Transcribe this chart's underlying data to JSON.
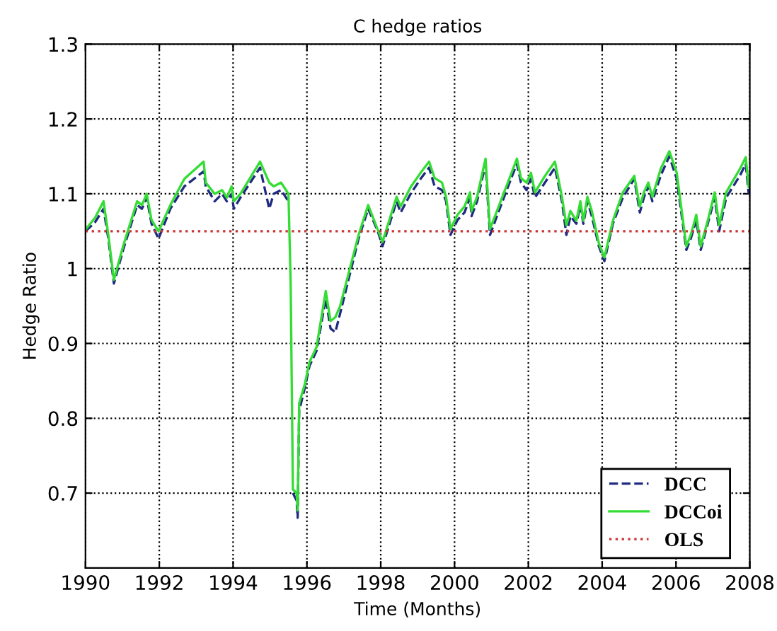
{
  "chart_data": {
    "type": "line",
    "title": "C hedge ratios",
    "xlabel": "Time (Months)",
    "ylabel": "Hedge Ratio",
    "xlim": [
      1990,
      2008
    ],
    "xticks": [
      1990,
      1992,
      1994,
      1996,
      1998,
      2000,
      2002,
      2004,
      2006,
      2008
    ],
    "ylim": [
      0.6,
      1.3
    ],
    "yticks": [
      0.7,
      0.8,
      0.9,
      1,
      1.1,
      1.2,
      1.3
    ],
    "grid": true,
    "legend": "bottom right",
    "marker": "none",
    "series": [
      {
        "name": "DCC",
        "color": "#1f2a80",
        "line_style": "dashed",
        "x": [
          1990.0,
          1990.26,
          1990.49,
          1990.62,
          1990.77,
          1991.02,
          1991.4,
          1991.53,
          1991.66,
          1991.79,
          1991.98,
          1992.3,
          1992.68,
          1993.2,
          1993.26,
          1993.5,
          1993.7,
          1993.83,
          1993.96,
          1994.02,
          1994.2,
          1994.73,
          1994.98,
          1995.1,
          1995.3,
          1995.5,
          1995.56,
          1995.62,
          1995.72,
          1995.75,
          1995.79,
          1995.94,
          1996.07,
          1996.26,
          1996.51,
          1996.64,
          1996.77,
          1996.9,
          1997.4,
          1997.66,
          1997.92,
          1998.05,
          1998.43,
          1998.54,
          1998.81,
          1999.08,
          1999.31,
          1999.46,
          1999.66,
          1999.77,
          1999.89,
          2000.08,
          2000.27,
          2000.42,
          2000.46,
          2000.61,
          2000.84,
          2000.96,
          2001.11,
          2001.49,
          2001.69,
          2001.8,
          2001.95,
          2002.07,
          2002.18,
          2002.45,
          2002.72,
          2002.91,
          2003.03,
          2003.14,
          2003.3,
          2003.41,
          2003.49,
          2003.6,
          2003.72,
          2003.91,
          2004.06,
          2004.29,
          2004.56,
          2004.87,
          2005.02,
          2005.13,
          2005.25,
          2005.36,
          2005.59,
          2005.82,
          2006.02,
          2006.28,
          2006.4,
          2006.55,
          2006.67,
          2006.86,
          2007.05,
          2007.17,
          2007.36,
          2007.74,
          2007.89,
          2007.97
        ],
        "values": [
          1.05,
          1.062,
          1.08,
          1.04,
          0.98,
          1.025,
          1.085,
          1.08,
          1.095,
          1.06,
          1.04,
          1.08,
          1.11,
          1.13,
          1.11,
          1.09,
          1.1,
          1.09,
          1.1,
          1.08,
          1.095,
          1.135,
          1.08,
          1.1,
          1.105,
          1.09,
          null,
          0.7,
          0.69,
          0.667,
          0.81,
          0.84,
          0.87,
          0.89,
          0.96,
          0.92,
          0.915,
          0.94,
          1.04,
          1.08,
          1.05,
          1.03,
          1.09,
          1.075,
          1.1,
          1.12,
          1.135,
          1.11,
          1.105,
          1.09,
          1.045,
          1.065,
          1.075,
          1.095,
          1.07,
          1.09,
          1.14,
          1.045,
          1.065,
          1.115,
          1.14,
          1.115,
          1.105,
          1.12,
          1.095,
          1.115,
          1.135,
          1.09,
          1.045,
          1.07,
          1.06,
          1.085,
          1.06,
          1.09,
          1.07,
          1.03,
          1.01,
          1.06,
          1.095,
          1.12,
          1.075,
          1.095,
          1.11,
          1.09,
          1.125,
          1.15,
          1.12,
          1.025,
          1.04,
          1.065,
          1.025,
          1.06,
          1.095,
          1.05,
          1.095,
          1.125,
          1.14,
          1.1
        ]
      },
      {
        "name": "DCCoi",
        "color": "#33dd33",
        "line_style": "solid",
        "x": [
          1990.0,
          1990.26,
          1990.49,
          1990.62,
          1990.77,
          1991.02,
          1991.4,
          1991.53,
          1991.66,
          1991.79,
          1991.98,
          1992.3,
          1992.68,
          1993.2,
          1993.26,
          1993.5,
          1993.7,
          1993.83,
          1993.96,
          1994.02,
          1994.2,
          1994.73,
          1994.98,
          1995.1,
          1995.3,
          1995.5,
          1995.56,
          1995.62,
          1995.72,
          1995.75,
          1995.79,
          1995.94,
          1996.07,
          1996.26,
          1996.51,
          1996.64,
          1996.77,
          1996.9,
          1997.4,
          1997.66,
          1997.92,
          1998.05,
          1998.43,
          1998.54,
          1998.81,
          1999.08,
          1999.31,
          1999.46,
          1999.66,
          1999.77,
          1999.89,
          2000.08,
          2000.27,
          2000.42,
          2000.46,
          2000.61,
          2000.84,
          2000.96,
          2001.11,
          2001.49,
          2001.69,
          2001.8,
          2001.95,
          2002.07,
          2002.18,
          2002.45,
          2002.72,
          2002.91,
          2003.03,
          2003.14,
          2003.3,
          2003.41,
          2003.49,
          2003.6,
          2003.72,
          2003.91,
          2004.06,
          2004.29,
          2004.56,
          2004.87,
          2005.02,
          2005.13,
          2005.25,
          2005.36,
          2005.59,
          2005.82,
          2006.02,
          2006.28,
          2006.4,
          2006.55,
          2006.67,
          2006.86,
          2007.05,
          2007.17,
          2007.36,
          2007.74,
          2007.89,
          2007.97
        ],
        "values": [
          1.052,
          1.068,
          1.09,
          1.045,
          0.985,
          1.03,
          1.09,
          1.085,
          1.1,
          1.065,
          1.05,
          1.085,
          1.12,
          1.143,
          1.115,
          1.1,
          1.105,
          1.095,
          1.11,
          1.09,
          1.1,
          1.143,
          1.115,
          1.11,
          1.115,
          1.1,
          0.98,
          0.705,
          0.7,
          0.677,
          0.82,
          0.845,
          0.875,
          0.895,
          0.97,
          0.93,
          0.935,
          0.95,
          1.045,
          1.085,
          1.052,
          1.036,
          1.096,
          1.083,
          1.109,
          1.128,
          1.143,
          1.121,
          1.115,
          1.096,
          1.053,
          1.072,
          1.083,
          1.102,
          1.077,
          1.096,
          1.147,
          1.053,
          1.072,
          1.121,
          1.147,
          1.121,
          1.115,
          1.128,
          1.102,
          1.124,
          1.143,
          1.096,
          1.058,
          1.077,
          1.064,
          1.09,
          1.064,
          1.096,
          1.077,
          1.034,
          1.015,
          1.064,
          1.102,
          1.124,
          1.083,
          1.102,
          1.115,
          1.096,
          1.134,
          1.157,
          1.128,
          1.03,
          1.045,
          1.072,
          1.03,
          1.064,
          1.102,
          1.058,
          1.102,
          1.134,
          1.149,
          1.109
        ]
      },
      {
        "name": "OLS",
        "color": "#cc3333",
        "line_style": "dotted",
        "x": [
          1990,
          2008
        ],
        "values": [
          1.05,
          1.05
        ]
      }
    ]
  }
}
